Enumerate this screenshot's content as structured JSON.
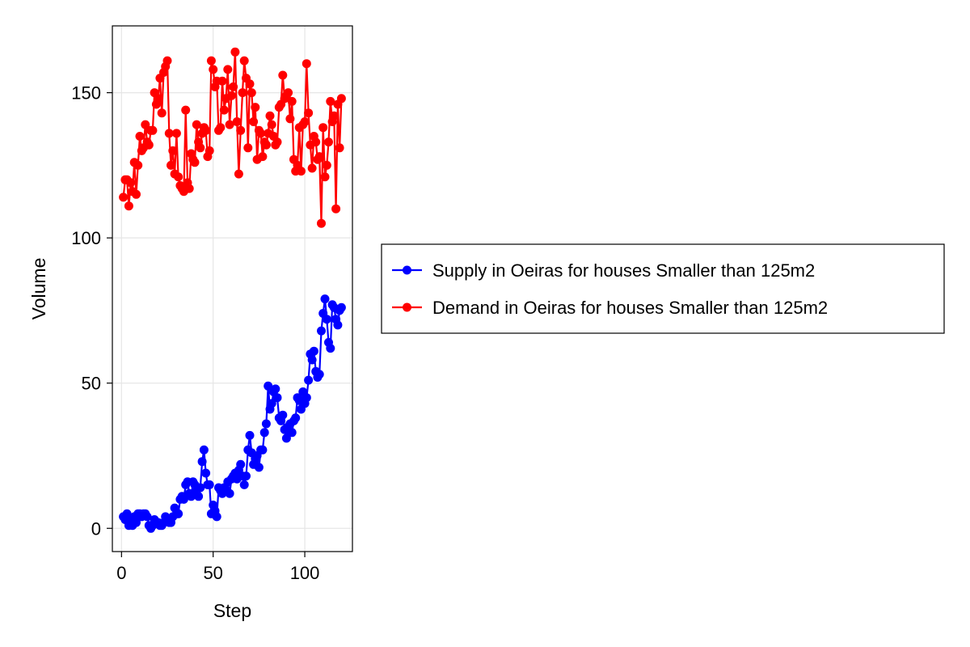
{
  "chart_data": {
    "type": "line",
    "xlabel": "Step",
    "ylabel": "Volume",
    "xlim": [
      -5,
      126
    ],
    "ylim": [
      -8,
      173
    ],
    "xticks": [
      0,
      50,
      100
    ],
    "yticks": [
      0,
      50,
      100,
      150
    ],
    "grid": true,
    "legend_position": "right",
    "series": [
      {
        "name": "Supply in Oeiras for houses Smaller than 125m2",
        "color": "#0000ff",
        "x": [
          1,
          2,
          3,
          4,
          5,
          6,
          7,
          8,
          9,
          10,
          11,
          12,
          13,
          14,
          15,
          16,
          17,
          18,
          19,
          20,
          21,
          22,
          23,
          24,
          25,
          26,
          27,
          28,
          29,
          30,
          31,
          32,
          33,
          34,
          35,
          36,
          37,
          38,
          39,
          40,
          41,
          42,
          43,
          44,
          45,
          46,
          47,
          48,
          49,
          50,
          51,
          52,
          53,
          54,
          55,
          56,
          57,
          58,
          59,
          60,
          61,
          62,
          63,
          64,
          65,
          66,
          67,
          68,
          69,
          70,
          71,
          72,
          73,
          74,
          75,
          76,
          77,
          78,
          79,
          80,
          81,
          82,
          83,
          84,
          85,
          86,
          87,
          88,
          89,
          90,
          91,
          92,
          93,
          94,
          95,
          96,
          97,
          98,
          99,
          100,
          101,
          102,
          103,
          104,
          105,
          106,
          107,
          108,
          109,
          110,
          111,
          112,
          113,
          114,
          115,
          116,
          117,
          118,
          119,
          120
        ],
        "y": [
          4,
          3,
          5,
          1,
          3,
          1,
          4,
          2,
          5,
          5,
          4,
          5,
          5,
          4,
          1,
          0,
          1,
          3,
          2,
          2,
          1,
          1,
          2,
          4,
          3,
          2,
          2,
          4,
          7,
          5,
          5,
          10,
          11,
          10,
          15,
          16,
          12,
          11,
          16,
          15,
          13,
          11,
          14,
          23,
          27,
          19,
          15,
          15,
          5,
          8,
          6,
          4,
          14,
          13,
          12,
          14,
          13,
          16,
          12,
          17,
          18,
          19,
          17,
          20,
          22,
          18,
          15,
          18,
          27,
          32,
          26,
          22,
          24,
          25,
          21,
          27,
          27,
          33,
          36,
          49,
          41,
          43,
          47,
          48,
          45,
          38,
          37,
          39,
          34,
          31,
          35,
          36,
          33,
          37,
          38,
          45,
          44,
          41,
          47,
          43,
          45,
          51,
          60,
          58,
          61,
          54,
          52,
          53,
          68,
          74,
          79,
          72,
          64,
          62,
          77,
          76,
          72,
          70,
          75,
          76
        ]
      },
      {
        "name": "Demand in Oeiras for houses Smaller than 125m2",
        "color": "#ff0000",
        "x": [
          1,
          2,
          3,
          4,
          5,
          6,
          7,
          8,
          9,
          10,
          11,
          12,
          13,
          14,
          15,
          16,
          17,
          18,
          19,
          20,
          21,
          22,
          23,
          24,
          25,
          26,
          27,
          28,
          29,
          30,
          31,
          32,
          33,
          34,
          35,
          36,
          37,
          38,
          39,
          40,
          41,
          42,
          43,
          44,
          45,
          46,
          47,
          48,
          49,
          50,
          51,
          52,
          53,
          54,
          55,
          56,
          57,
          58,
          59,
          60,
          61,
          62,
          63,
          64,
          65,
          66,
          67,
          68,
          69,
          70,
          71,
          72,
          73,
          74,
          75,
          76,
          77,
          78,
          79,
          80,
          81,
          82,
          83,
          84,
          85,
          86,
          87,
          88,
          89,
          90,
          91,
          92,
          93,
          94,
          95,
          96,
          97,
          98,
          99,
          100,
          101,
          102,
          103,
          104,
          105,
          106,
          107,
          108,
          109,
          110,
          111,
          112,
          113,
          114,
          115,
          116,
          117,
          118,
          119,
          120
        ],
        "y": [
          114,
          120,
          120,
          111,
          119,
          116,
          126,
          115,
          125,
          135,
          130,
          131,
          139,
          133,
          132,
          137,
          137,
          150,
          146,
          148,
          155,
          143,
          157,
          159,
          161,
          136,
          125,
          130,
          122,
          136,
          121,
          118,
          117,
          116,
          144,
          119,
          117,
          129,
          127,
          126,
          139,
          133,
          131,
          136,
          138,
          137,
          128,
          130,
          161,
          158,
          152,
          154,
          137,
          138,
          154,
          144,
          148,
          158,
          139,
          149,
          152,
          164,
          140,
          122,
          137,
          150,
          161,
          155,
          131,
          153,
          150,
          140,
          145,
          127,
          137,
          136,
          128,
          133,
          132,
          136,
          142,
          139,
          135,
          132,
          133,
          145,
          146,
          156,
          148,
          149,
          150,
          141,
          147,
          127,
          123,
          125,
          138,
          123,
          139,
          140,
          160,
          143,
          132,
          124,
          135,
          133,
          127,
          128,
          105,
          138,
          121,
          125,
          133,
          147,
          140,
          142,
          110,
          146,
          131,
          148
        ]
      }
    ]
  }
}
